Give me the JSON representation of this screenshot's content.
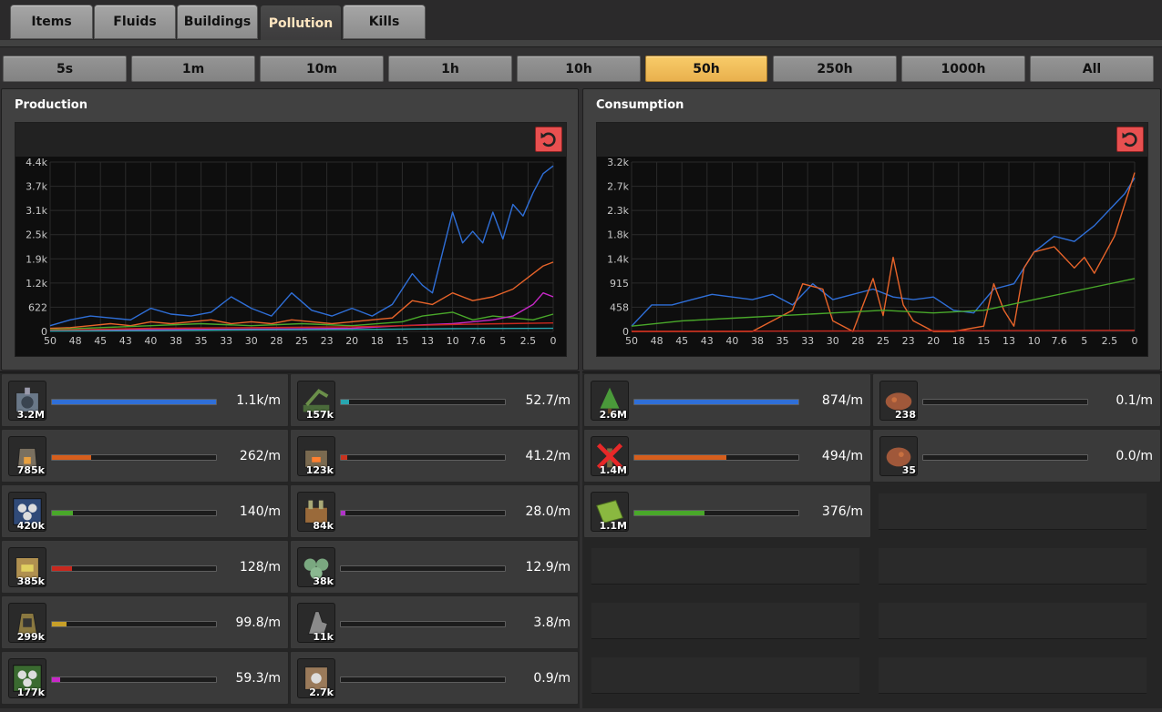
{
  "tabs": [
    {
      "label": "Items",
      "active": false
    },
    {
      "label": "Fluids",
      "active": false
    },
    {
      "label": "Buildings",
      "active": false
    },
    {
      "label": "Pollution",
      "active": true
    },
    {
      "label": "Kills",
      "active": false
    }
  ],
  "time_buttons": [
    {
      "label": "5s",
      "active": false
    },
    {
      "label": "1m",
      "active": false
    },
    {
      "label": "10m",
      "active": false
    },
    {
      "label": "1h",
      "active": false
    },
    {
      "label": "10h",
      "active": false
    },
    {
      "label": "50h",
      "active": true
    },
    {
      "label": "250h",
      "active": false
    },
    {
      "label": "1000h",
      "active": false
    },
    {
      "label": "All",
      "active": false
    }
  ],
  "production": {
    "title": "Production",
    "reset_icon": "reset-icon",
    "rows": [
      {
        "icon": "mining-drill-icon",
        "count": "3.2M",
        "rate": "1.1k/m",
        "fill": 1.0,
        "color": "#2f6fd8"
      },
      {
        "icon": "pumpjack-icon",
        "count": "157k",
        "rate": "52.7/m",
        "fill": 0.05,
        "color": "#28a6b0"
      },
      {
        "icon": "stone-furnace-icon",
        "count": "785k",
        "rate": "262/m",
        "fill": 0.24,
        "color": "#d65e1c"
      },
      {
        "icon": "boiler-icon",
        "count": "123k",
        "rate": "41.2/m",
        "fill": 0.04,
        "color": "#c8321e"
      },
      {
        "icon": "assembling-machine-2-icon",
        "count": "420k",
        "rate": "140/m",
        "fill": 0.13,
        "color": "#49a82a"
      },
      {
        "icon": "oil-refinery-icon",
        "count": "84k",
        "rate": "28.0/m",
        "fill": 0.03,
        "color": "#b034c8"
      },
      {
        "icon": "steel-furnace-icon",
        "count": "385k",
        "rate": "128/m",
        "fill": 0.12,
        "color": "#c8281e"
      },
      {
        "icon": "chemical-plant-icon",
        "count": "38k",
        "rate": "12.9/m",
        "fill": 0.0,
        "color": "#888888"
      },
      {
        "icon": "burner-mining-drill-icon",
        "count": "299k",
        "rate": "99.8/m",
        "fill": 0.09,
        "color": "#c8a028"
      },
      {
        "icon": "offshore-pump-icon",
        "count": "11k",
        "rate": "3.8/m",
        "fill": 0.0,
        "color": "#888888"
      },
      {
        "icon": "assembling-machine-3-icon",
        "count": "177k",
        "rate": "59.3/m",
        "fill": 0.05,
        "color": "#c828c8"
      },
      {
        "icon": "centrifuge-icon",
        "count": "2.7k",
        "rate": "0.9/m",
        "fill": 0.0,
        "color": "#888888"
      }
    ]
  },
  "consumption": {
    "title": "Consumption",
    "reset_icon": "reset-icon",
    "rows": [
      {
        "icon": "tree-icon",
        "count": "2.6M",
        "rate": "874/m",
        "fill": 1.0,
        "color": "#2f6fd8"
      },
      {
        "icon": "spawner-icon",
        "count": "238",
        "rate": "0.1/m",
        "fill": 0.0,
        "color": "#888888"
      },
      {
        "icon": "dead-tree-icon",
        "count": "1.4M",
        "rate": "494/m",
        "fill": 0.56,
        "color": "#d65e1c"
      },
      {
        "icon": "biter-spawner-icon",
        "count": "35",
        "rate": "0.0/m",
        "fill": 0.0,
        "color": "#888888"
      },
      {
        "icon": "grass-tile-icon",
        "count": "1.1M",
        "rate": "376/m",
        "fill": 0.43,
        "color": "#49a82a"
      }
    ]
  },
  "chart_data": [
    {
      "type": "line",
      "title": "Production",
      "yticks": [
        "4.4k",
        "3.7k",
        "3.1k",
        "2.5k",
        "1.9k",
        "1.2k",
        "622",
        "0"
      ],
      "xticks": [
        "50",
        "48",
        "45",
        "43",
        "40",
        "38",
        "35",
        "33",
        "30",
        "28",
        "25",
        "23",
        "20",
        "18",
        "15",
        "13",
        "10",
        "7.6",
        "5",
        "2.5",
        "0"
      ],
      "ylim": [
        0,
        4400
      ],
      "xlim": [
        50,
        0
      ],
      "grid": true,
      "series": [
        {
          "color": "#2f6fd8",
          "x": [
            50,
            48,
            46,
            44,
            42,
            40,
            38,
            36,
            34,
            32,
            30,
            28,
            26,
            24,
            22,
            20,
            18,
            16,
            14,
            13,
            12,
            10,
            9,
            8,
            7,
            6,
            5,
            4,
            3,
            2,
            1,
            0
          ],
          "values": [
            150,
            300,
            400,
            350,
            300,
            600,
            450,
            400,
            500,
            900,
            600,
            400,
            1000,
            550,
            400,
            600,
            400,
            700,
            1500,
            1200,
            1000,
            3100,
            2300,
            2600,
            2300,
            3100,
            2400,
            3300,
            3000,
            3600,
            4100,
            4300
          ]
        },
        {
          "color": "#e8642a",
          "x": [
            50,
            48,
            46,
            44,
            42,
            40,
            38,
            36,
            34,
            32,
            30,
            28,
            26,
            24,
            22,
            20,
            18,
            16,
            14,
            12,
            10,
            8,
            6,
            4,
            2,
            1,
            0
          ],
          "values": [
            80,
            100,
            150,
            200,
            150,
            250,
            200,
            250,
            300,
            200,
            250,
            200,
            300,
            250,
            200,
            250,
            300,
            350,
            800,
            700,
            1000,
            800,
            900,
            1100,
            1500,
            1700,
            1800
          ]
        },
        {
          "color": "#49a82a",
          "x": [
            50,
            45,
            40,
            35,
            30,
            25,
            20,
            15,
            13,
            10,
            8,
            6,
            4,
            2,
            0
          ],
          "values": [
            50,
            100,
            150,
            200,
            150,
            200,
            150,
            250,
            400,
            500,
            300,
            400,
            350,
            300,
            450
          ]
        },
        {
          "color": "#c828c8",
          "x": [
            50,
            40,
            30,
            20,
            15,
            10,
            6,
            4,
            2,
            1,
            0
          ],
          "values": [
            20,
            50,
            60,
            80,
            150,
            200,
            300,
            400,
            700,
            1000,
            900
          ]
        },
        {
          "color": "#c8281e",
          "x": [
            50,
            40,
            30,
            20,
            15,
            10,
            5,
            0
          ],
          "values": [
            30,
            80,
            100,
            120,
            150,
            180,
            200,
            220
          ]
        },
        {
          "color": "#28a6b0",
          "x": [
            50,
            40,
            30,
            20,
            10,
            0
          ],
          "values": [
            10,
            20,
            40,
            50,
            70,
            80
          ]
        }
      ]
    },
    {
      "type": "line",
      "title": "Consumption",
      "yticks": [
        "3.2k",
        "2.7k",
        "2.3k",
        "1.8k",
        "1.4k",
        "915",
        "458",
        "0"
      ],
      "xticks": [
        "50",
        "48",
        "45",
        "43",
        "40",
        "38",
        "35",
        "33",
        "30",
        "28",
        "25",
        "23",
        "20",
        "18",
        "15",
        "13",
        "10",
        "7.6",
        "5",
        "2.5",
        "0"
      ],
      "ylim": [
        0,
        3200
      ],
      "xlim": [
        50,
        0
      ],
      "grid": true,
      "series": [
        {
          "color": "#2f6fd8",
          "x": [
            50,
            48,
            46,
            44,
            42,
            40,
            38,
            36,
            34,
            32,
            30,
            28,
            26,
            24,
            22,
            20,
            18,
            16,
            14,
            12,
            10,
            8,
            6,
            4,
            2,
            1,
            0
          ],
          "values": [
            100,
            500,
            500,
            600,
            700,
            650,
            600,
            700,
            500,
            900,
            600,
            700,
            800,
            650,
            600,
            650,
            400,
            350,
            800,
            900,
            1500,
            1800,
            1700,
            2000,
            2400,
            2600,
            2900
          ]
        },
        {
          "color": "#e8642a",
          "x": [
            50,
            46,
            42,
            38,
            34,
            33,
            31,
            30,
            28,
            26,
            25,
            24,
            23,
            22,
            20,
            18,
            15,
            14,
            13,
            12,
            11,
            10,
            8,
            6,
            5,
            4,
            2,
            1,
            0
          ],
          "values": [
            0,
            0,
            0,
            0,
            400,
            900,
            800,
            200,
            0,
            1000,
            300,
            1400,
            500,
            200,
            0,
            0,
            100,
            900,
            400,
            100,
            1200,
            1500,
            1600,
            1200,
            1400,
            1100,
            1800,
            2400,
            3000
          ]
        },
        {
          "color": "#49a82a",
          "x": [
            50,
            45,
            40,
            35,
            30,
            25,
            20,
            15,
            10,
            5,
            0
          ],
          "values": [
            100,
            200,
            250,
            300,
            350,
            400,
            350,
            400,
            600,
            800,
            1000
          ]
        },
        {
          "color": "#c8281e",
          "x": [
            50,
            25,
            0
          ],
          "values": [
            0,
            10,
            20
          ]
        }
      ]
    }
  ]
}
